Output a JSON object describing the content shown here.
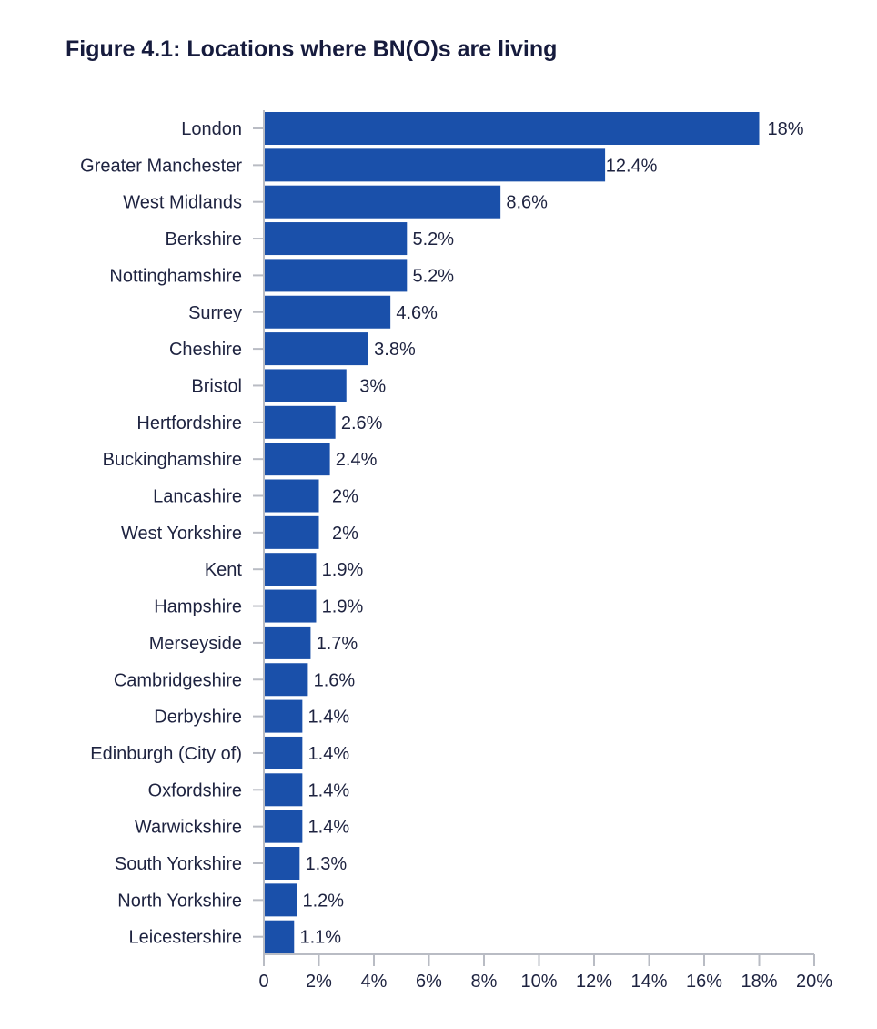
{
  "chart_data": {
    "type": "bar",
    "orientation": "horizontal",
    "title": "Figure 4.1: Locations where BN(O)s are living",
    "categories": [
      "London",
      "Greater Manchester",
      "West Midlands",
      "Berkshire",
      "Nottinghamshire",
      "Surrey",
      "Cheshire",
      "Bristol",
      "Hertfordshire",
      "Buckinghamshire",
      "Lancashire",
      "West Yorkshire",
      "Kent",
      "Hampshire",
      "Merseyside",
      "Cambridgeshire",
      "Derbyshire",
      "Edinburgh (City of)",
      "Oxfordshire",
      "Warwickshire",
      "South Yorkshire",
      "North Yorkshire",
      "Leicestershire"
    ],
    "values": [
      18,
      12.4,
      8.6,
      5.2,
      5.2,
      4.6,
      3.8,
      3,
      2.6,
      2.4,
      2,
      2,
      1.9,
      1.9,
      1.7,
      1.6,
      1.4,
      1.4,
      1.4,
      1.4,
      1.3,
      1.2,
      1.1
    ],
    "value_labels": [
      "18%",
      "12.4%",
      "8.6%",
      "5.2%",
      "5.2%",
      "4.6%",
      "3.8%",
      "3%",
      "2.6%",
      "2.4%",
      "2%",
      "2%",
      "1.9%",
      "1.9%",
      "1.7%",
      "1.6%",
      "1.4%",
      "1.4%",
      "1.4%",
      "1.4%",
      "1.3%",
      "1.2%",
      "1.1%"
    ],
    "xlim": [
      0,
      20
    ],
    "x_ticks": [
      0,
      2,
      4,
      6,
      8,
      10,
      12,
      14,
      16,
      18,
      20
    ],
    "x_tick_labels": [
      "0",
      "2%",
      "4%",
      "6%",
      "8%",
      "10%",
      "12%",
      "14%",
      "16%",
      "18%",
      "20%"
    ],
    "xlabel": "",
    "ylabel": "",
    "grid": false,
    "legend": "none",
    "bar_color": "#1a50aa",
    "axis_color": "#b9bcc4"
  }
}
